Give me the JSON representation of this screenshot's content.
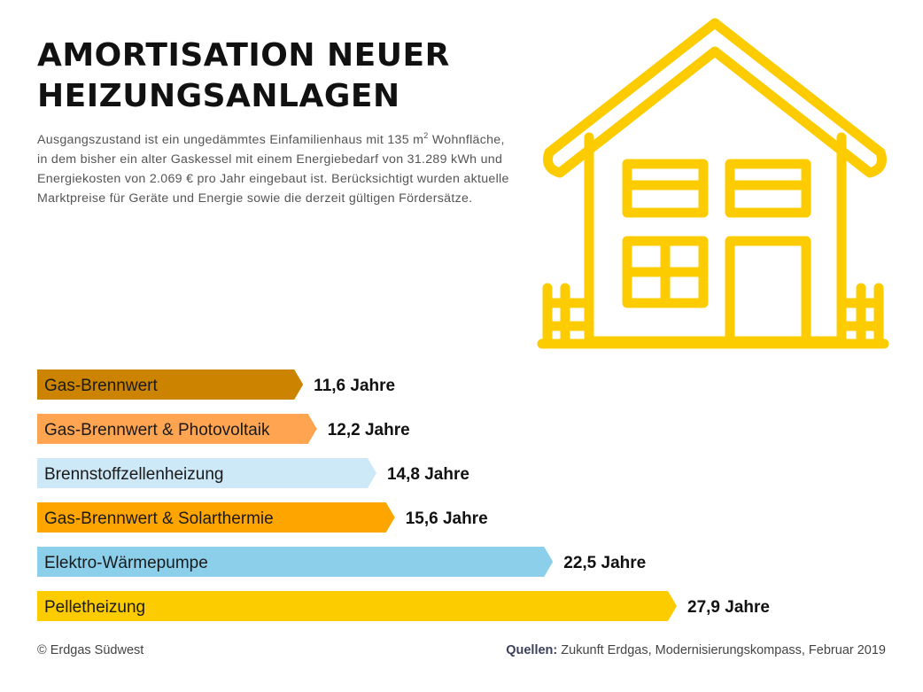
{
  "header": {
    "title_line1": "AMORTISATION NEUER",
    "title_line2": "HEIZUNGSANLAGEN",
    "desc_line1_a": "Ausgangszustand ist ein ungedämmtes Einfamilienhaus mit 135 m",
    "desc_line1_sup": "2",
    "desc_line1_b": " Wohnfläche,",
    "desc_line2": "in dem bisher ein alter Gaskessel mit einem Energiebedarf von 31.289 kWh und",
    "desc_line3": "Energiekosten von 2.069 € pro Jahr eingebaut ist. Berücksichtigt wurden aktuelle",
    "desc_line4": "Marktpreise für Geräte und Energie sowie die derzeit gültigen Fördersätze."
  },
  "icon": {
    "name": "house-icon",
    "color": "#fccc00"
  },
  "chart_data": {
    "type": "bar",
    "orientation": "horizontal",
    "title": "Amortisation neuer Heizungsanlagen",
    "unit": "Jahre",
    "xlim": [
      0,
      27.9
    ],
    "categories": [
      "Gas-Brennwert",
      "Gas-Brennwert & Photovoltaik",
      "Brennstoffzellenheizung",
      "Gas-Brennwert & Solarthermie",
      "Elektro-Wärmepumpe",
      "Pelletheizung"
    ],
    "values": [
      11.6,
      12.2,
      14.8,
      15.6,
      22.5,
      27.9
    ],
    "value_labels": [
      "11,6 Jahre",
      "12,2 Jahre",
      "14,8 Jahre",
      "15,6 Jahre",
      "22,5 Jahre",
      "27,9 Jahre"
    ],
    "colors": [
      "#cc8400",
      "#ffa552",
      "#cde8f7",
      "#ffa500",
      "#8ccfea",
      "#fccc00"
    ]
  },
  "footer": {
    "copyright": "© Erdgas Südwest",
    "sources_label": "Quellen:",
    "sources_text": " Zukunft Erdgas, Modernisierungskompass, Februar 2019"
  }
}
